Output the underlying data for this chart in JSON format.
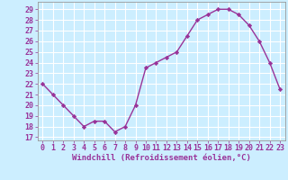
{
  "x": [
    0,
    1,
    2,
    3,
    4,
    5,
    6,
    7,
    8,
    9,
    10,
    11,
    12,
    13,
    14,
    15,
    16,
    17,
    18,
    19,
    20,
    21,
    22,
    23
  ],
  "y": [
    22,
    21,
    20,
    19,
    18,
    18.5,
    18.5,
    17.5,
    18,
    20,
    23.5,
    24,
    24.5,
    25,
    26.5,
    28,
    28.5,
    29,
    29,
    28.5,
    27.5,
    26,
    24,
    21.5
  ],
  "line_color": "#993399",
  "marker": "D",
  "marker_size": 2.2,
  "line_width": 1.0,
  "xlabel": "Windchill (Refroidissement éolien,°C)",
  "xlabel_fontsize": 6.5,
  "ylabel_ticks": [
    17,
    18,
    19,
    20,
    21,
    22,
    23,
    24,
    25,
    26,
    27,
    28,
    29
  ],
  "ylim": [
    16.7,
    29.7
  ],
  "xlim": [
    -0.5,
    23.5
  ],
  "bg_color": "#cceeff",
  "grid_color": "#ffffff",
  "tick_fontsize": 6.0
}
